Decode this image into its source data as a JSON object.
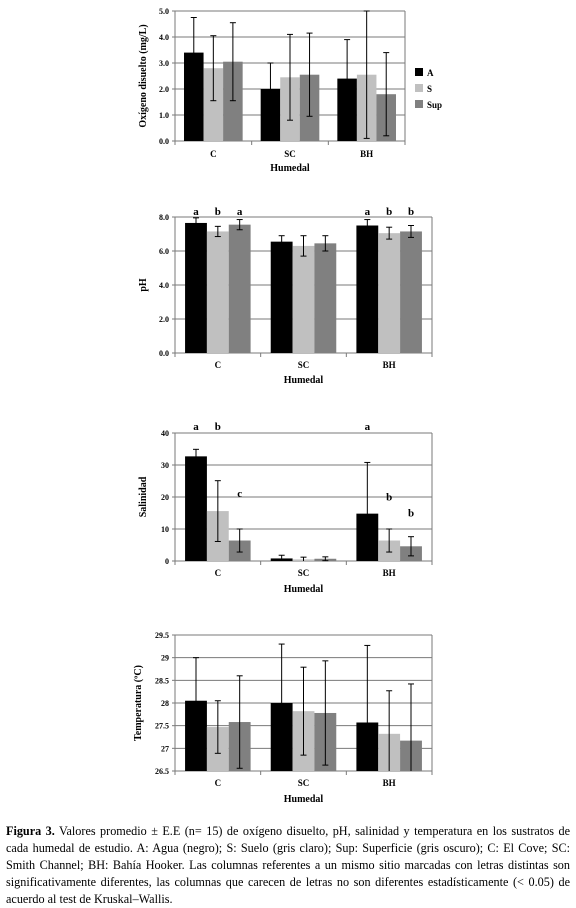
{
  "caption": {
    "label": "Figura 3.",
    "text": " Valores promedio ± E.E (n= 15) de oxígeno disuelto, pH, salinidad y temperatura en los sustratos de cada humedal de estudio. A: Agua (negro); S: Suelo (gris claro); Sup: Superficie (gris oscuro); C: El Cove; SC: Smith Channel; BH: Bahía Hooker. Las columnas referentes a un mismo sitio marcadas con letras distintas son significativamente diferentes, las columnas que carecen de letras no son diferentes estadísticamente (< 0.05) de acuerdo al test de Kruskal–Wallis."
  },
  "colors": {
    "A": "#000000",
    "S": "#c0c0c0",
    "Sup": "#808080"
  },
  "legend": [
    {
      "key": "A",
      "label": "A"
    },
    {
      "key": "S",
      "label": "S"
    },
    {
      "key": "Sup",
      "label": "Sup"
    }
  ],
  "chart_data": [
    {
      "type": "bar",
      "ylabel": "Oxígeno disuelto (mg/L)",
      "xlabel": "Humedal",
      "categories": [
        "C",
        "SC",
        "BH"
      ],
      "ylim": [
        0,
        5
      ],
      "yticks": [
        "0.0",
        "1.0",
        "2.0",
        "3.0",
        "4.0",
        "5.0"
      ],
      "series": [
        {
          "name": "A",
          "values": [
            3.4,
            2.0,
            2.4
          ],
          "errors": [
            1.35,
            1.0,
            1.5
          ]
        },
        {
          "name": "S",
          "values": [
            2.8,
            2.45,
            2.55
          ],
          "errors": [
            1.25,
            1.65,
            2.45
          ]
        },
        {
          "name": "Sup",
          "values": [
            3.05,
            2.55,
            1.8
          ],
          "errors": [
            1.5,
            1.6,
            1.6
          ]
        }
      ],
      "significance": [],
      "legend": "right"
    },
    {
      "type": "bar",
      "ylabel": "pH",
      "xlabel": "Humedal",
      "categories": [
        "C",
        "SC",
        "BH"
      ],
      "ylim": [
        0,
        8
      ],
      "yticks": [
        "0.0",
        "2.0",
        "4.0",
        "6.0",
        "8.0"
      ],
      "series": [
        {
          "name": "A",
          "values": [
            7.65,
            6.55,
            7.5
          ],
          "errors": [
            0.3,
            0.35,
            0.35
          ]
        },
        {
          "name": "S",
          "values": [
            7.15,
            6.3,
            7.05
          ],
          "errors": [
            0.3,
            0.6,
            0.35
          ]
        },
        {
          "name": "Sup",
          "values": [
            7.55,
            6.45,
            7.15
          ],
          "errors": [
            0.3,
            0.45,
            0.35
          ]
        }
      ],
      "significance": [
        {
          "series": 0,
          "category": 0,
          "label": "a",
          "value": 7.95
        },
        {
          "series": 1,
          "category": 0,
          "label": "b",
          "value": 7.95
        },
        {
          "series": 2,
          "category": 0,
          "label": "a",
          "value": 7.95
        },
        {
          "series": 0,
          "category": 2,
          "label": "a",
          "value": 7.95
        },
        {
          "series": 1,
          "category": 2,
          "label": "b",
          "value": 7.95
        },
        {
          "series": 2,
          "category": 2,
          "label": "b",
          "value": 7.95
        }
      ],
      "legend": "none"
    },
    {
      "type": "bar",
      "ylabel": "Salinidad",
      "xlabel": "Humedal",
      "categories": [
        "C",
        "SC",
        "BH"
      ],
      "ylim": [
        0,
        40
      ],
      "yticks": [
        "0",
        "10",
        "20",
        "30",
        "40"
      ],
      "series": [
        {
          "name": "A",
          "values": [
            32.7,
            0.8,
            14.8
          ],
          "errors": [
            2.2,
            1.0,
            16.0
          ]
        },
        {
          "name": "S",
          "values": [
            15.6,
            0.5,
            6.4
          ],
          "errors": [
            9.5,
            0.7,
            3.6
          ]
        },
        {
          "name": "Sup",
          "values": [
            6.4,
            0.7,
            4.6
          ],
          "errors": [
            3.6,
            0.6,
            3.0
          ]
        }
      ],
      "significance": [
        {
          "series": 0,
          "category": 0,
          "label": "a",
          "value": 40
        },
        {
          "series": 1,
          "category": 0,
          "label": "b",
          "value": 40
        },
        {
          "series": 2,
          "category": 0,
          "label": "c",
          "value": 19
        },
        {
          "series": 0,
          "category": 2,
          "label": "a",
          "value": 40
        },
        {
          "series": 1,
          "category": 2,
          "label": "b",
          "value": 18
        },
        {
          "series": 2,
          "category": 2,
          "label": "b",
          "value": 13
        }
      ],
      "legend": "none"
    },
    {
      "type": "bar",
      "ylabel": "Temperatura (ºC)",
      "xlabel": "Humedal",
      "categories": [
        "C",
        "SC",
        "BH"
      ],
      "ylim": [
        26.5,
        29.5
      ],
      "yticks": [
        "26.5",
        "27",
        "27.5",
        "28",
        "28.5",
        "29",
        "29.5"
      ],
      "series": [
        {
          "name": "A",
          "values": [
            28.05,
            28.0,
            27.57
          ],
          "errors": [
            0.95,
            1.3,
            1.7
          ]
        },
        {
          "name": "S",
          "values": [
            27.47,
            27.82,
            27.32
          ],
          "errors": [
            0.58,
            0.97,
            0.95
          ]
        },
        {
          "name": "Sup",
          "values": [
            27.58,
            27.78,
            27.17
          ],
          "errors": [
            1.02,
            1.15,
            1.25
          ]
        }
      ],
      "significance": [],
      "legend": "none"
    }
  ]
}
